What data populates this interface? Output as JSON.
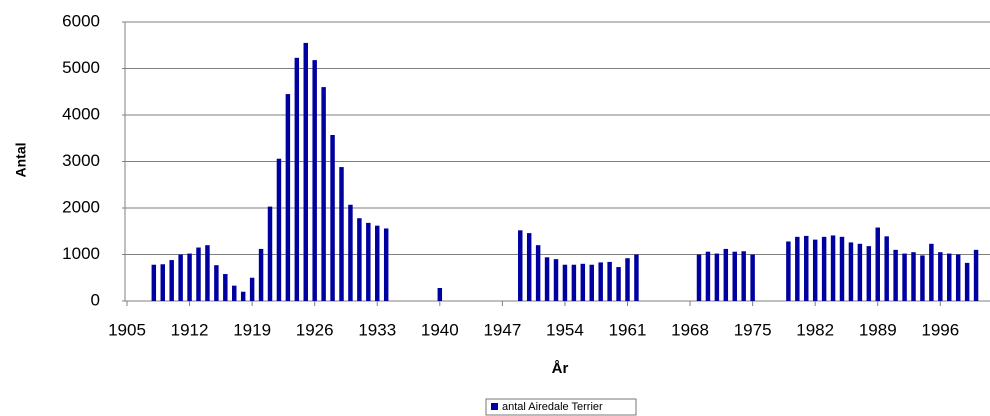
{
  "chart_data": {
    "type": "bar",
    "x_label": "År",
    "y_label": "Antal",
    "series": [
      {
        "name": "antal Airedale Terrier",
        "color": "#0000a0",
        "x": [
          1908,
          1909,
          1910,
          1911,
          1912,
          1913,
          1914,
          1915,
          1916,
          1917,
          1918,
          1919,
          1920,
          1921,
          1922,
          1923,
          1924,
          1925,
          1926,
          1927,
          1928,
          1929,
          1930,
          1931,
          1932,
          1933,
          1934,
          1940,
          1949,
          1950,
          1951,
          1952,
          1953,
          1954,
          1955,
          1956,
          1957,
          1958,
          1959,
          1960,
          1961,
          1962,
          1969,
          1970,
          1971,
          1972,
          1973,
          1974,
          1975,
          1979,
          1980,
          1981,
          1982,
          1983,
          1984,
          1985,
          1986,
          1987,
          1988,
          1989,
          1990,
          1991,
          1992,
          1993,
          1994,
          1995,
          1996,
          1997,
          1998,
          1999,
          2000
        ],
        "values": [
          780,
          790,
          880,
          1000,
          1020,
          1150,
          1200,
          770,
          580,
          330,
          200,
          500,
          1120,
          2030,
          3060,
          4450,
          5230,
          5550,
          5180,
          4600,
          3570,
          2880,
          2070,
          1780,
          1680,
          1620,
          1560,
          280,
          1520,
          1460,
          1200,
          940,
          900,
          780,
          780,
          800,
          780,
          830,
          840,
          730,
          920,
          1000,
          1000,
          1060,
          1020,
          1120,
          1060,
          1070,
          1000,
          1280,
          1380,
          1400,
          1320,
          1380,
          1410,
          1380,
          1260,
          1230,
          1180,
          1580,
          1390,
          1100,
          1020,
          1050,
          980,
          1230,
          1050,
          1020,
          1000,
          820,
          1100
        ]
      }
    ],
    "xlim": [
      1905,
      2001
    ],
    "xticks": [
      1905,
      1912,
      1919,
      1926,
      1933,
      1940,
      1947,
      1954,
      1961,
      1968,
      1975,
      1982,
      1989,
      1996
    ],
    "ylim": [
      0,
      6000
    ],
    "yticks": [
      0,
      1000,
      2000,
      3000,
      4000,
      5000,
      6000
    ],
    "grid": true
  }
}
